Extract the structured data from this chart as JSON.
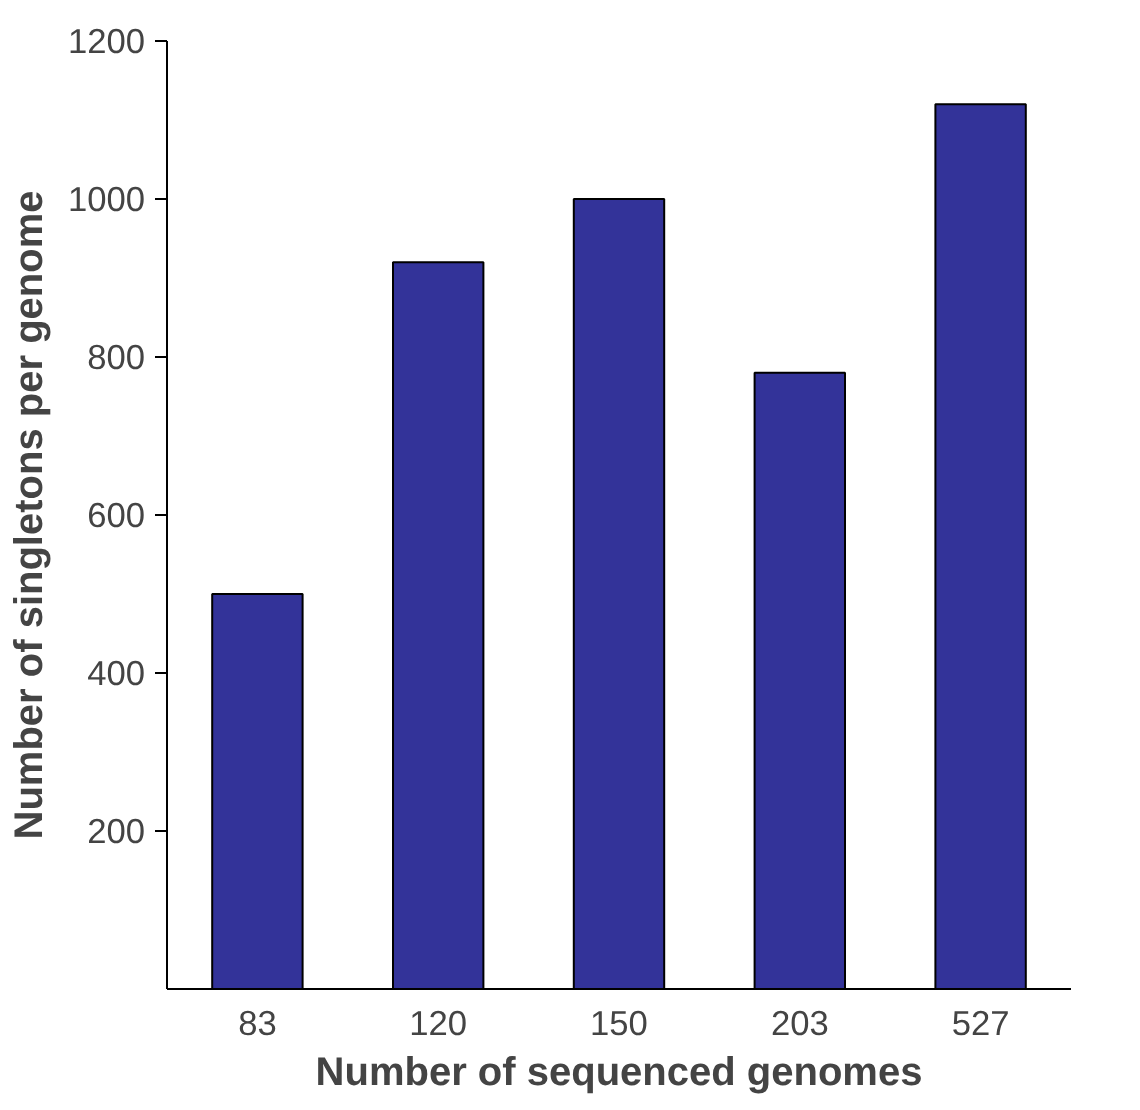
{
  "chart_data": {
    "type": "bar",
    "xlabel": "Number of sequenced genomes",
    "ylabel": "Number of singletons per genome",
    "categories": [
      "83",
      "120",
      "150",
      "203",
      "527"
    ],
    "series": [
      {
        "color": "#333399",
        "values": [
          500,
          920,
          1000,
          780,
          1120
        ]
      }
    ],
    "ylim": [
      0,
      1200
    ],
    "yticks": [
      200,
      400,
      600,
      800,
      1000,
      1200
    ]
  }
}
